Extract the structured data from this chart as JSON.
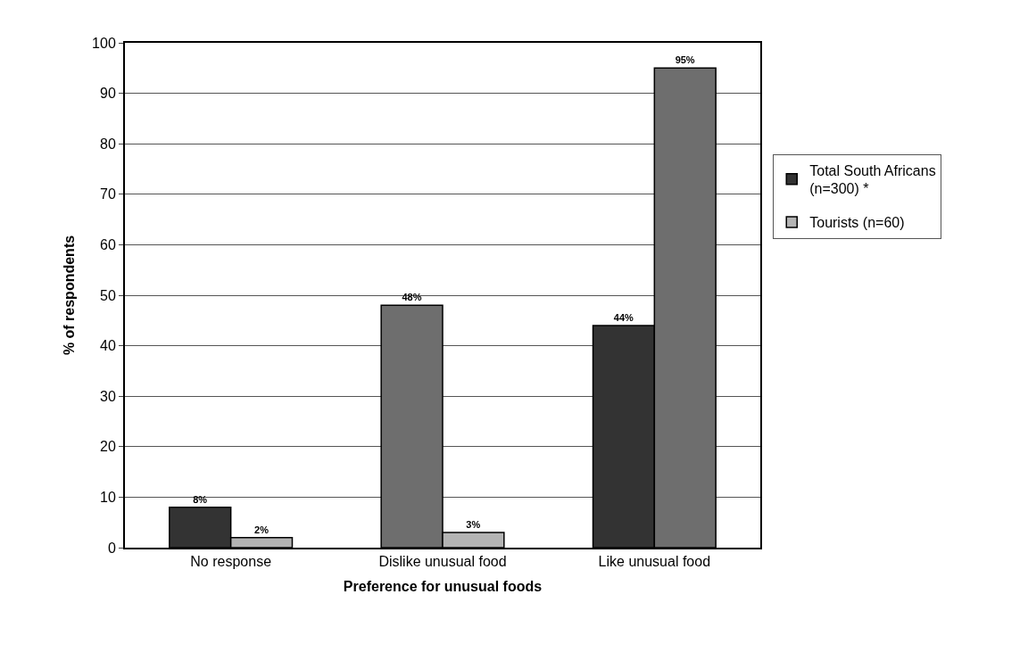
{
  "chart_data": {
    "type": "bar",
    "xlabel": "Preference for unusual foods",
    "ylabel": "% of respondents",
    "categories": [
      "No response",
      "Dislike unusual food",
      "Like unusual food"
    ],
    "series": [
      {
        "name": "Total South Africans\n(n=300) *",
        "color": "#333333",
        "colors": [
          "#333333",
          "#6e6e6e",
          "#333333"
        ],
        "values": [
          8,
          48,
          44
        ],
        "value_labels": [
          "8%",
          "48%",
          "44%"
        ]
      },
      {
        "name": "Tourists (n=60)",
        "color": "#b4b4b4",
        "colors": [
          "#b4b4b4",
          "#b4b4b4",
          "#6e6e6e"
        ],
        "values": [
          2,
          3,
          95
        ],
        "value_labels": [
          "2%",
          "3%",
          "95%"
        ]
      }
    ],
    "data_labels": true,
    "ylim": [
      0,
      100
    ],
    "yticks": [
      0,
      10,
      20,
      30,
      40,
      50,
      60,
      70,
      80,
      90,
      100
    ],
    "grid": "y",
    "legend": "right"
  }
}
